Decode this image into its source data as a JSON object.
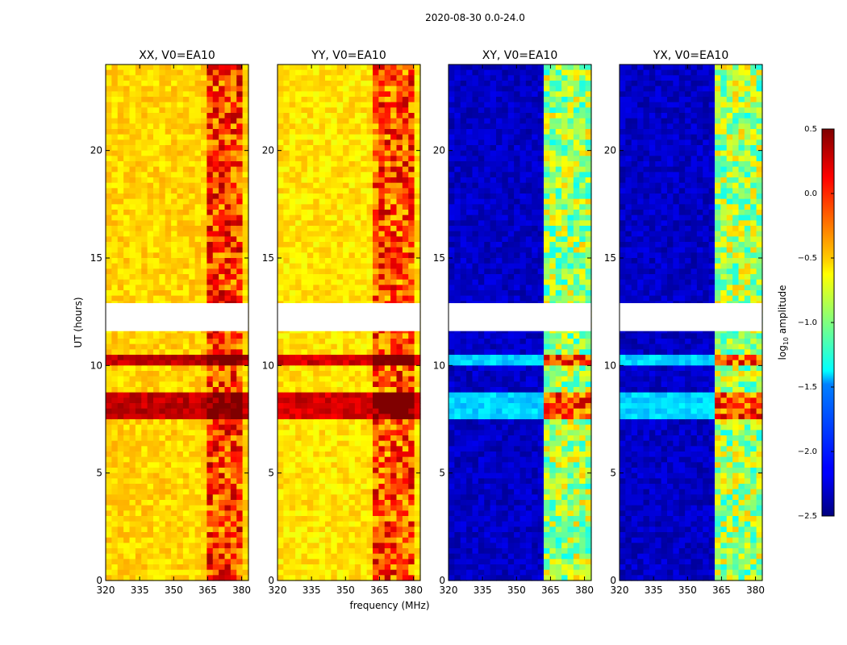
{
  "suptitle": "2020-08-30 0.0-24.0",
  "chart_data": {
    "type": "heatmap",
    "title": "2020-08-30 0.0-24.0",
    "xlabel": "frequency (MHz)",
    "ylabel": "UT (hours)",
    "x_range": [
      320,
      383
    ],
    "y_range": [
      0,
      24
    ],
    "x_ticks": [
      320,
      335,
      350,
      365,
      380
    ],
    "x_tick_labels": [
      "320",
      "335",
      "350",
      "365",
      "380"
    ],
    "y_ticks": [
      0,
      5,
      10,
      15,
      20
    ],
    "y_tick_labels": [
      "0",
      "5",
      "10",
      "15",
      "20"
    ],
    "colorbar": {
      "label": "log",
      "label_sub": "10",
      "label_suffix": " amplitude",
      "range": [
        -2.5,
        0.5
      ],
      "ticks": [
        0.5,
        0.0,
        -0.5,
        -1.0,
        -1.5,
        -2.0,
        -2.5
      ],
      "tick_labels": [
        "0.5",
        "0.0",
        "−0.5",
        "−1.0",
        "−1.5",
        "−2.0",
        "−2.5"
      ],
      "colormap": "jet"
    },
    "data_gaps_hours": [
      [
        11.6,
        12.9
      ]
    ],
    "panels": [
      {
        "title": "XX, V0=EA10",
        "polarization": "XX",
        "background_level": -0.5,
        "band_level": -0.05,
        "band_mhz": [
          364,
          381
        ]
      },
      {
        "title": "YY, V0=EA10",
        "polarization": "YY",
        "background_level": -0.55,
        "band_level": -0.1,
        "band_mhz": [
          363,
          380
        ]
      },
      {
        "title": "XY, V0=EA10",
        "polarization": "XY",
        "background_level": -2.3,
        "band_level": -0.9,
        "band_mhz": [
          363,
          382
        ]
      },
      {
        "title": "YX, V0=EA10",
        "polarization": "YX",
        "background_level": -2.3,
        "band_level": -0.9,
        "band_mhz": [
          363,
          382
        ]
      }
    ]
  }
}
